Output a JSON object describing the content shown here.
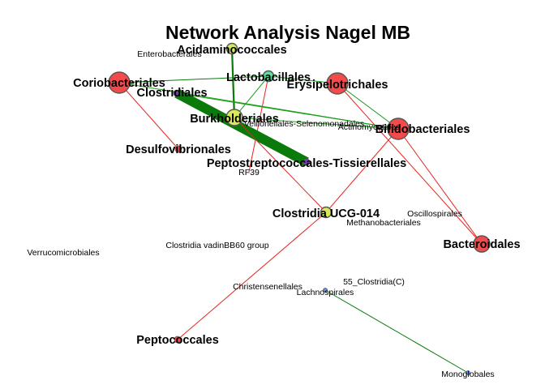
{
  "title": "Network Analysis Nagel MB",
  "nodes": [
    {
      "id": "acidaminococcales",
      "label": "Acidaminococcales",
      "color": "#d7e85a",
      "size": "small",
      "bold": true
    },
    {
      "id": "enterobacterales",
      "label": "Enterobacterales",
      "color": "",
      "size": "none",
      "bold": false
    },
    {
      "id": "coriobacteriales",
      "label": "Coriobacteriales",
      "color": "#f24b4b",
      "size": "large",
      "bold": true
    },
    {
      "id": "lactobacillales",
      "label": "Lactobacillales",
      "color": "#59e0a0",
      "size": "small",
      "bold": true
    },
    {
      "id": "erysipelotrichales",
      "label": "Erysipelotrichales",
      "color": "#f24b4b",
      "size": "large",
      "bold": true
    },
    {
      "id": "clostridiales",
      "label": "Clostridiales",
      "color": "#7b3fb5",
      "size": "tiny",
      "bold": true
    },
    {
      "id": "burkholderiales",
      "label": "Burkholderiales",
      "color": "#d7e85a",
      "size": "medium",
      "bold": true
    },
    {
      "id": "veillonellales",
      "label": "Veillonellales-Selenomonadales",
      "color": "",
      "size": "none",
      "bold": false
    },
    {
      "id": "actinomycetales",
      "label": "Actinomycetales",
      "color": "",
      "size": "none",
      "bold": false
    },
    {
      "id": "bifidobacteriales",
      "label": "Bifidobacteriales",
      "color": "#f24b4b",
      "size": "large",
      "bold": true
    },
    {
      "id": "desulfovibrionales",
      "label": "Desulfovibrionales",
      "color": "#f24b4b",
      "size": "tiny",
      "bold": true
    },
    {
      "id": "peptostreptococcales",
      "label": "Peptostreptococcales-Tissierellales",
      "color": "#7b3fb5",
      "size": "tiny",
      "bold": true
    },
    {
      "id": "rf39",
      "label": "RF39",
      "color": "",
      "size": "none",
      "bold": false
    },
    {
      "id": "clostridia_ucg014",
      "label": "Clostridia UCG-014",
      "color": "#d7e85a",
      "size": "small",
      "bold": true
    },
    {
      "id": "oscillospirales",
      "label": "Oscillospirales",
      "color": "",
      "size": "none",
      "bold": false
    },
    {
      "id": "methanobacteriales",
      "label": "Methanobacteriales",
      "color": "",
      "size": "none",
      "bold": false
    },
    {
      "id": "bacteroidales",
      "label": "Bacteroidales",
      "color": "#f24b4b",
      "size": "medium",
      "bold": true
    },
    {
      "id": "verrucomicrobiales",
      "label": "Verrucomicrobiales",
      "color": "",
      "size": "none",
      "bold": false
    },
    {
      "id": "clostridia_vadin",
      "label": "Clostridia vadinBB60 group",
      "color": "",
      "size": "none",
      "bold": false
    },
    {
      "id": "clostridia_55",
      "label": "55_Clostridia(C)",
      "color": "",
      "size": "none",
      "bold": false
    },
    {
      "id": "christensenellales",
      "label": "Christensenellales",
      "color": "",
      "size": "none",
      "bold": false
    },
    {
      "id": "lachnospirales",
      "label": "Lachnospirales",
      "color": "#6b8fe0",
      "size": "dot",
      "bold": false
    },
    {
      "id": "peptococcales",
      "label": "Peptococcales",
      "color": "#f24b4b",
      "size": "tiny",
      "bold": true
    },
    {
      "id": "monoglobales",
      "label": "Monoglobales",
      "color": "#6b8fe0",
      "size": "dot",
      "bold": false
    }
  ],
  "edges": [
    {
      "from": "acidaminococcales",
      "to": "burkholderiales",
      "color": "#0a7a0a",
      "weight": "medium"
    },
    {
      "from": "coriobacteriales",
      "to": "lactobacillales",
      "color": "#0a7a0a",
      "weight": "thin"
    },
    {
      "from": "coriobacteriales",
      "to": "bifidobacteriales",
      "color": "#1a9e1a",
      "weight": "thin"
    },
    {
      "from": "coriobacteriales",
      "to": "desulfovibrionales",
      "color": "#e8231f",
      "weight": "thin"
    },
    {
      "from": "lactobacillales",
      "to": "burkholderiales",
      "color": "#1a9e1a",
      "weight": "thin"
    },
    {
      "from": "lactobacillales",
      "to": "erysipelotrichales",
      "color": "#1a9e1a",
      "weight": "thin"
    },
    {
      "from": "lactobacillales",
      "to": "rf39",
      "color": "#e8231f",
      "weight": "thin"
    },
    {
      "from": "erysipelotrichales",
      "to": "bifidobacteriales",
      "color": "#1a9e1a",
      "weight": "thin"
    },
    {
      "from": "erysipelotrichales",
      "to": "bacteroidales",
      "color": "#e8231f",
      "weight": "thin"
    },
    {
      "from": "clostridiales",
      "to": "peptostreptococcales",
      "color": "#0a7a0a",
      "weight": "heavy"
    },
    {
      "from": "clostridiales",
      "to": "bifidobacteriales",
      "color": "#1a9e1a",
      "weight": "thin"
    },
    {
      "from": "burkholderiales",
      "to": "bifidobacteriales",
      "color": "#1a9e1a",
      "weight": "thin"
    },
    {
      "from": "burkholderiales",
      "to": "clostridia_ucg014",
      "color": "#e8231f",
      "weight": "thin"
    },
    {
      "from": "bifidobacteriales",
      "to": "clostridia_ucg014",
      "color": "#e8231f",
      "weight": "thin"
    },
    {
      "from": "bifidobacteriales",
      "to": "bacteroidales",
      "color": "#e8231f",
      "weight": "thin"
    },
    {
      "from": "clostridia_ucg014",
      "to": "peptococcales",
      "color": "#e8231f",
      "weight": "thin"
    },
    {
      "from": "lachnospirales",
      "to": "monoglobales",
      "color": "#0a7a0a",
      "weight": "thin"
    }
  ]
}
